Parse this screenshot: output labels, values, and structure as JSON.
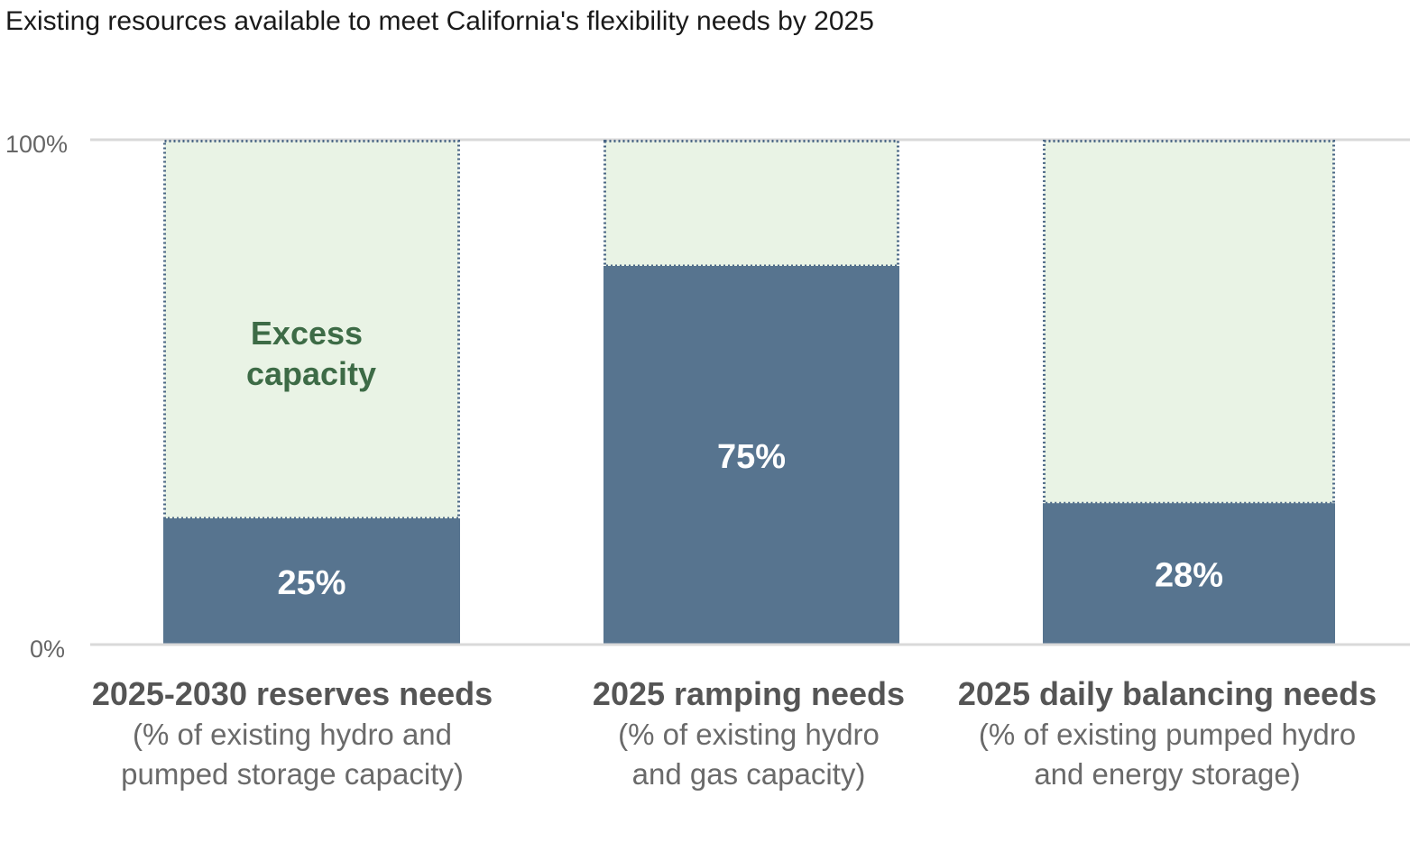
{
  "chart_data": {
    "type": "bar",
    "title": "Existing resources available to meet California's flexibility needs by 2025",
    "ylim": [
      0,
      100
    ],
    "yticks": [
      "0%",
      "100%"
    ],
    "grid": true,
    "categories": [
      {
        "label": "2025-2030 reserves needs",
        "sublabel_lines": [
          "(% of existing hydro and",
          "pumped storage capacity)"
        ]
      },
      {
        "label": "2025 ramping needs",
        "sublabel_lines": [
          "(% of existing hydro",
          "and gas capacity)"
        ]
      },
      {
        "label": "2025 daily balancing needs",
        "sublabel_lines": [
          "(% of existing pumped hydro",
          "and energy storage)"
        ]
      }
    ],
    "values": [
      25,
      75,
      28
    ],
    "value_labels": [
      "25%",
      "75%",
      "28%"
    ],
    "annotation_lines": [
      "Excess",
      "capacity"
    ],
    "colors": {
      "used": "#57748f",
      "excess_fill": "#e9f3e5",
      "excess_border": "#4a6785",
      "excess_text": "#3d6b46",
      "gridline": "#d9d9d9"
    }
  }
}
